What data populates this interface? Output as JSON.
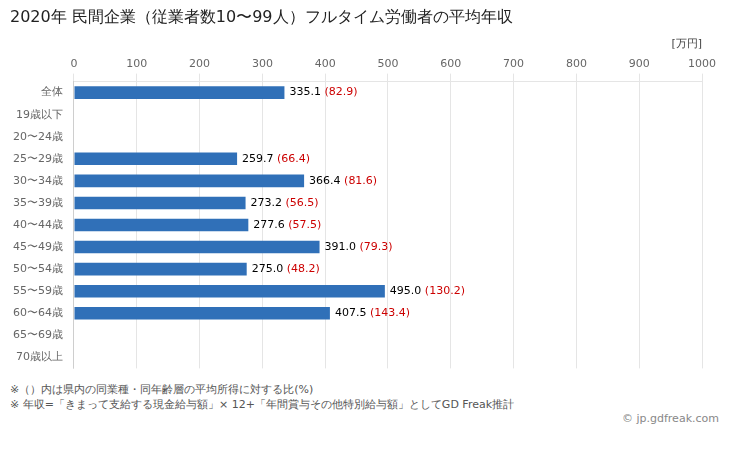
{
  "chart_data": {
    "type": "bar",
    "orientation": "horizontal",
    "title": "2020年 民間企業（従業者数10〜99人）フルタイム労働者の平均年収",
    "xlabel": "[万円]",
    "categories": [
      "全体",
      "19歳以下",
      "20〜24歳",
      "25〜29歳",
      "30〜34歳",
      "35〜39歳",
      "40〜44歳",
      "45〜49歳",
      "50〜54歳",
      "55〜59歳",
      "60〜64歳",
      "65〜69歳",
      "70歳以上"
    ],
    "values": [
      335.1,
      null,
      null,
      259.7,
      366.4,
      273.2,
      277.6,
      391.0,
      275.0,
      495.0,
      407.5,
      null,
      null
    ],
    "annotations": [
      "335.1 (82.9)",
      null,
      null,
      "259.7 (66.4)",
      "366.4 (81.6)",
      "273.2 (56.5)",
      "277.6 (57.5)",
      "391.0 (79.3)",
      "275.0 (48.2)",
      "495.0 (130.2)",
      "407.5 (143.4)",
      null,
      null
    ],
    "color": "#3070b8",
    "xlim": [
      0,
      1000
    ],
    "xticks": [
      0,
      100,
      200,
      300,
      400,
      500,
      600,
      700,
      800,
      900,
      1000
    ],
    "grid": true,
    "footnotes": [
      "※（）内は県内の同業種・同年齢層の平均所得に対する比(%)",
      "※ 年収=「きまって支給する現金給与額」× 12+「年間賞与その他特別給与額」としてGD Freak推計"
    ],
    "watermark": "© jp.gdfreak.com"
  }
}
